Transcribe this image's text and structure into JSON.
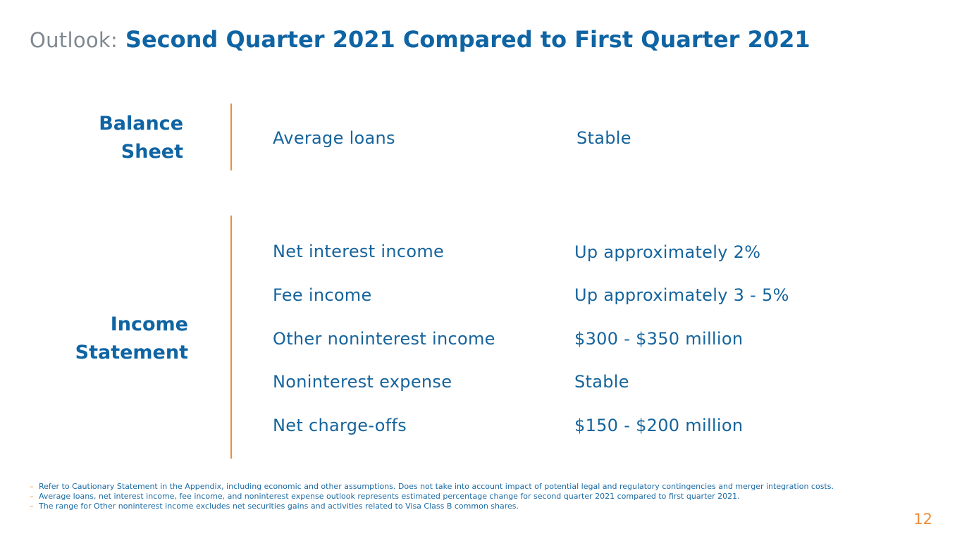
{
  "header": {
    "prefix": "Outlook:",
    "title": "Second Quarter 2021 Compared to First Quarter 2021"
  },
  "balance_sheet": {
    "label_line1": "Balance",
    "label_line2": "Sheet",
    "rows": [
      {
        "label": "Average loans",
        "value": "Stable"
      }
    ]
  },
  "income_statement": {
    "label_line1": "Income",
    "label_line2": "Statement",
    "rows": [
      {
        "label": "Net interest income",
        "value": "Up approximately 2%"
      },
      {
        "label": "Fee income",
        "value": "Up approximately 3 - 5%"
      },
      {
        "label": "Other noninterest income",
        "value": "$300 - $350 million"
      },
      {
        "label": "Noninterest expense",
        "value": "Stable"
      },
      {
        "label": "Net charge-offs",
        "value": "$150 - $200 million"
      }
    ]
  },
  "footnotes": {
    "bullet": "–",
    "items": [
      "Refer to Cautionary Statement in the Appendix, including economic and other assumptions. Does not take into account impact of potential legal and regulatory contingencies and merger integration costs.",
      "Average loans, net interest income, fee income, and noninterest expense outlook represents estimated percentage change for second quarter 2021 compared to first quarter 2021.",
      "The range for Other noninterest income excludes net securities gains and activities related to Visa Class B common shares."
    ]
  },
  "page_number": "12",
  "colors": {
    "brand_blue": "#0f64a3",
    "accent_orange": "#ef8c38",
    "gray": "#7f8890"
  }
}
